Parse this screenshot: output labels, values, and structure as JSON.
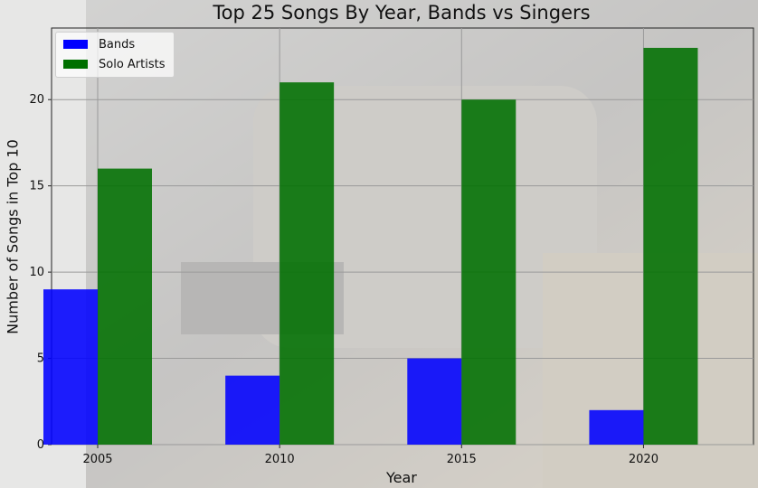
{
  "chart_data": {
    "type": "bar",
    "title": "Top 25 Songs By Year, Bands vs Singers",
    "xlabel": "Year",
    "ylabel": "Number of Songs in Top 10",
    "categories": [
      "2005",
      "2010",
      "2015",
      "2020"
    ],
    "series": [
      {
        "name": "Bands",
        "values": [
          9,
          4,
          5,
          2
        ],
        "color": "#0000ff"
      },
      {
        "name": "Solo Artists",
        "values": [
          16,
          21,
          20,
          23
        ],
        "color": "#007000"
      }
    ],
    "ylim": [
      0,
      24.15
    ],
    "yticks": [
      0,
      5,
      10,
      15,
      20
    ],
    "grid": true,
    "legend_position": "top-left"
  }
}
